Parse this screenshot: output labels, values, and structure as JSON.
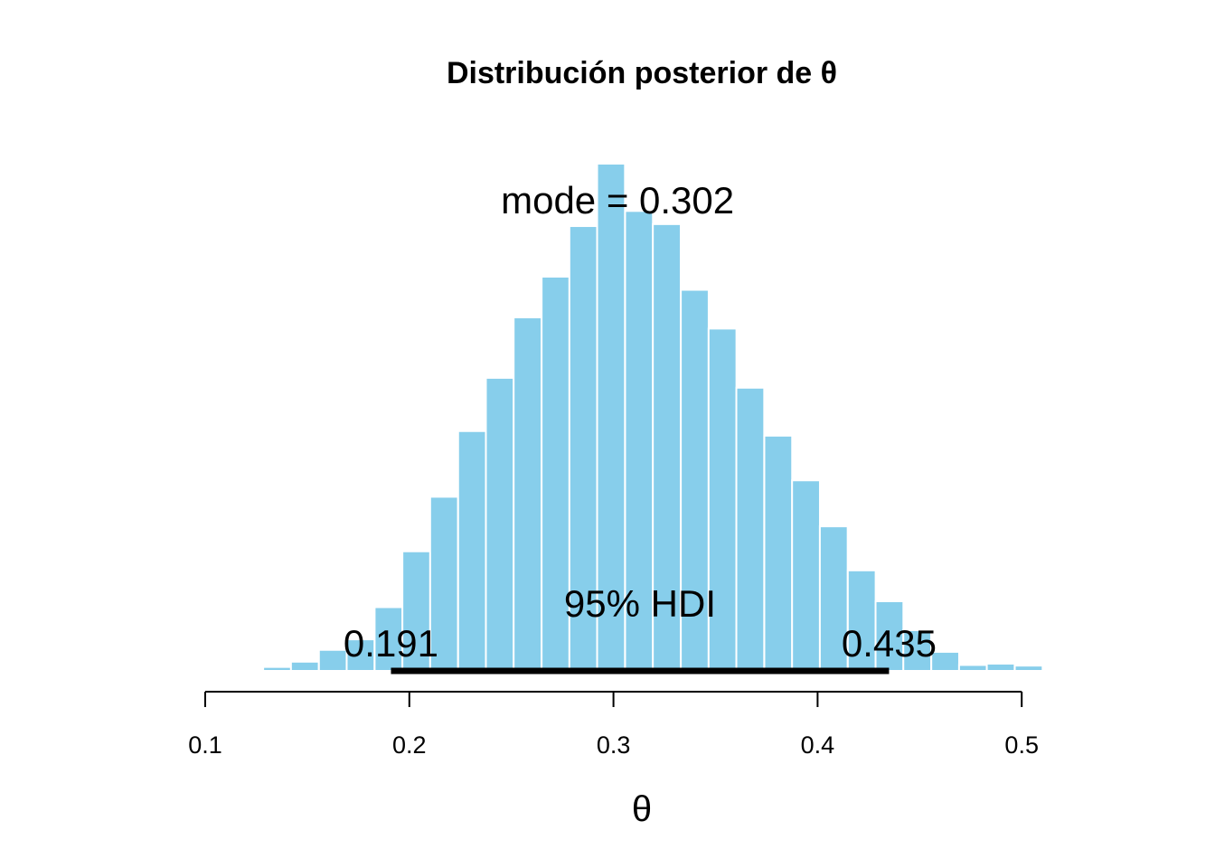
{
  "colors": {
    "bar_fill": "#87CEEB",
    "bar_edge": "#ffffff",
    "hdi_line": "#000000",
    "axis": "#000000"
  },
  "chart_data": {
    "type": "bar",
    "title": "Distribución posterior de θ",
    "xlabel": "θ",
    "ylabel": "",
    "xlim": [
      0.1,
      0.54
    ],
    "x_ticks": [
      "0.1",
      "0.2",
      "0.3",
      "0.4",
      "0.5"
    ],
    "x_tick_values": [
      0.1,
      0.2,
      0.3,
      0.4,
      0.5
    ],
    "grid": false,
    "bin_width": 0.01364,
    "bins": [
      {
        "start": 0.1284,
        "density": 0.06
      },
      {
        "start": 0.142,
        "density": 0.14
      },
      {
        "start": 0.1557,
        "density": 0.32
      },
      {
        "start": 0.1693,
        "density": 0.48
      },
      {
        "start": 0.183,
        "density": 0.97
      },
      {
        "start": 0.1966,
        "density": 1.82
      },
      {
        "start": 0.2102,
        "density": 2.65
      },
      {
        "start": 0.2239,
        "density": 3.65
      },
      {
        "start": 0.2375,
        "density": 4.46
      },
      {
        "start": 0.2511,
        "density": 5.38
      },
      {
        "start": 0.2648,
        "density": 6.0
      },
      {
        "start": 0.2784,
        "density": 6.77
      },
      {
        "start": 0.292,
        "density": 7.72
      },
      {
        "start": 0.3057,
        "density": 7.0
      },
      {
        "start": 0.3193,
        "density": 6.8
      },
      {
        "start": 0.333,
        "density": 5.8
      },
      {
        "start": 0.3466,
        "density": 5.21
      },
      {
        "start": 0.3602,
        "density": 4.31
      },
      {
        "start": 0.3739,
        "density": 3.58
      },
      {
        "start": 0.3875,
        "density": 2.9
      },
      {
        "start": 0.4011,
        "density": 2.2
      },
      {
        "start": 0.4148,
        "density": 1.53
      },
      {
        "start": 0.4284,
        "density": 1.06
      },
      {
        "start": 0.442,
        "density": 0.62
      },
      {
        "start": 0.4557,
        "density": 0.29
      },
      {
        "start": 0.4693,
        "density": 0.09
      },
      {
        "start": 0.4829,
        "density": 0.11
      },
      {
        "start": 0.4966,
        "density": 0.08
      },
      {
        "start": 0.5102,
        "density": 0.0
      },
      {
        "start": 0.5238,
        "density": 0.015
      }
    ],
    "y_max": 7.72,
    "mode": {
      "value": 0.302,
      "label": "mode = 0.302"
    },
    "hdi": {
      "low": 0.191,
      "high": 0.435,
      "low_label": "0.191",
      "high_label": "0.435",
      "label": "95% HDI"
    }
  }
}
